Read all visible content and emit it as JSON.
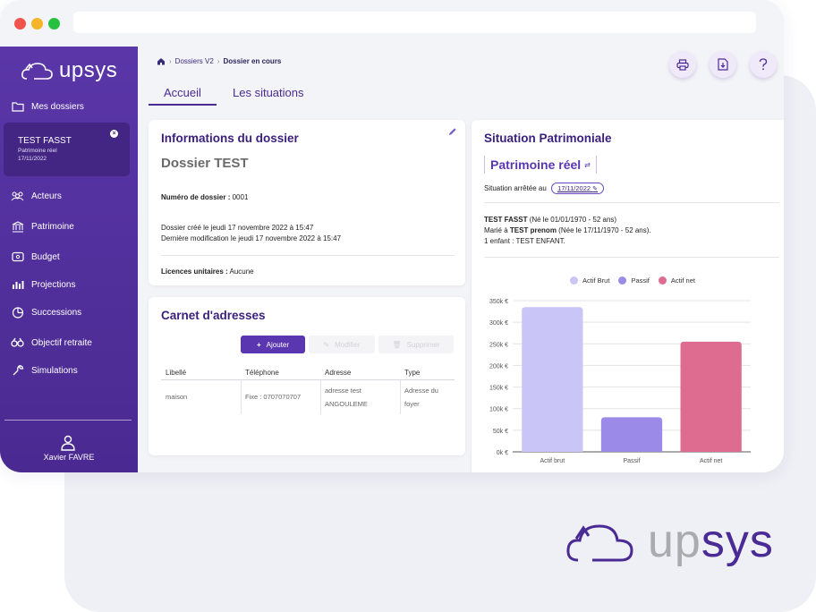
{
  "app": {
    "name": "upsys",
    "brand_color": "#4a2b95",
    "sidebar_color": "#5a36a8"
  },
  "sidebar": {
    "items": [
      {
        "label": "Mes dossiers",
        "icon": "folder-icon"
      },
      {
        "label": "Acteurs",
        "icon": "people-icon"
      },
      {
        "label": "Patrimoine",
        "icon": "bank-icon"
      },
      {
        "label": "Budget",
        "icon": "wallet-icon"
      },
      {
        "label": "Projections",
        "icon": "bar-chart-icon"
      },
      {
        "label": "Successions",
        "icon": "pie-chart-icon"
      },
      {
        "label": "Objectif retraite",
        "icon": "binoculars-icon"
      },
      {
        "label": "Simulations",
        "icon": "wrench-icon"
      }
    ],
    "dossier": {
      "name": "TEST FASST",
      "type": "Patrimoine réel",
      "date": "17/11/2022"
    },
    "user": {
      "name": "Xavier FAVRE",
      "icon": "user-icon"
    }
  },
  "breadcrumb": {
    "home_icon": "home-icon",
    "parent": "Dossiers V2",
    "current": "Dossier en cours"
  },
  "toolbar": {
    "print_icon": "printer-icon",
    "download_icon": "download-icon",
    "help_icon": "help-icon"
  },
  "tabs": [
    {
      "label": "Accueil",
      "active": true
    },
    {
      "label": "Les situations",
      "active": false
    }
  ],
  "info": {
    "title": "Informations du dossier",
    "edit_icon": "pencil-icon",
    "dossier_name": "Dossier TEST",
    "numero_label": "Numéro de dossier :",
    "numero_value": "0001",
    "created": "Dossier créé le jeudi 17 novembre 2022 à 15:47",
    "modified": "Dernière modification le jeudi 17 novembre 2022 à 15:47",
    "licences_label": "Licences unitaires :",
    "licences_value": "Aucune"
  },
  "carnet": {
    "title": "Carnet d'adresses",
    "buttons": {
      "add": "Ajouter",
      "edit": "Modifier",
      "delete": "Supprimer"
    },
    "columns": [
      "Libellé",
      "Téléphone",
      "Adresse",
      "Type"
    ],
    "rows": [
      {
        "libelle": "maison",
        "telephone": "Fixe : 0707070707",
        "adresse_1": "adresse test",
        "adresse_2": "ANGOULEME",
        "type_1": "Adresse du",
        "type_2": "foyer"
      }
    ]
  },
  "situation": {
    "title": "Situation Patrimoniale",
    "patrimoine": "Patrimoine réel",
    "arrete_label": "Situation arrêtée au",
    "arrete_date": "17/11/2022",
    "person_name": "TEST FASST",
    "person_detail": "(Né le 01/01/1970 - 52 ans)",
    "spouse_prefix": "Marié à",
    "spouse_name": "TEST prenom",
    "spouse_detail": "(Née le 17/11/1970 - 52 ans).",
    "children": "1 enfant : TEST ENFANT."
  },
  "chart_data": {
    "type": "bar",
    "categories": [
      "Actif brut",
      "Passif",
      "Actif net"
    ],
    "values": [
      335000,
      80000,
      255000
    ],
    "colors": [
      "#c9c6f7",
      "#9b8ae8",
      "#dd6c90"
    ],
    "legend": [
      "Actif Brut",
      "Passif",
      "Actif net"
    ],
    "ylim": [
      0,
      350000
    ],
    "yticks": [
      "0k €",
      "50k €",
      "100k €",
      "150k €",
      "200k €",
      "250k €",
      "300k €",
      "350k €"
    ],
    "grid": true,
    "legend_position": "top"
  },
  "watermark": {
    "pre": "up",
    "post": "sys"
  }
}
